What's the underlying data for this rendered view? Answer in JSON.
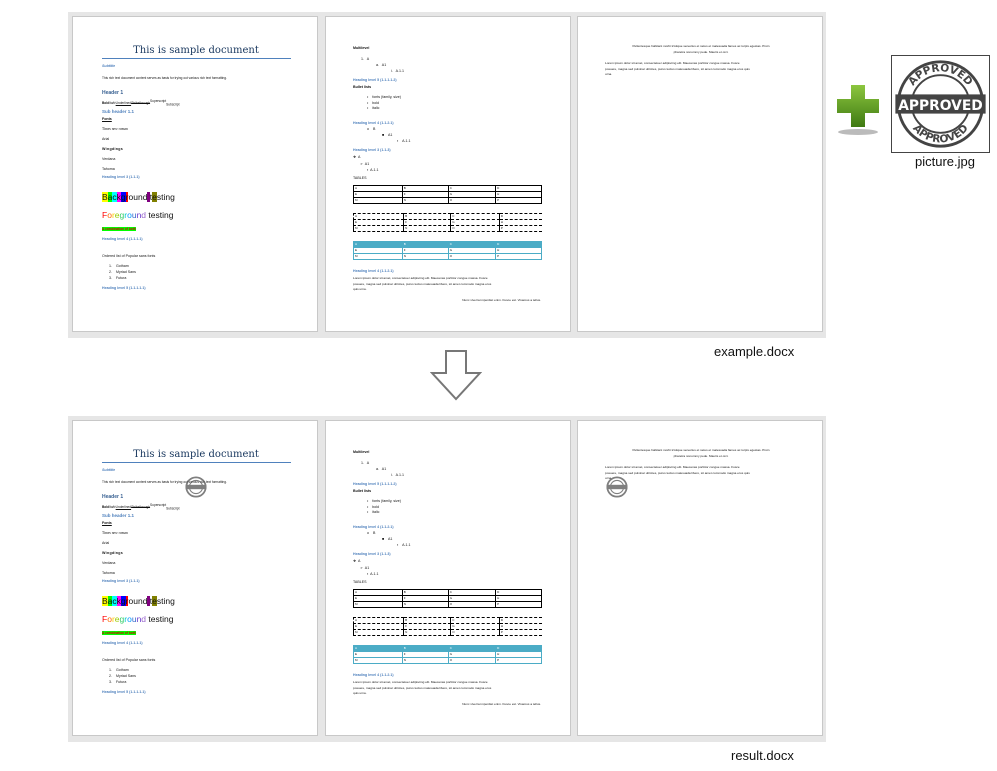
{
  "document": {
    "page1": {
      "title": "This is sample document",
      "subtitle": "Subtitle",
      "intro": "This rich text document content serves as basis for trying out various rich text formatting.",
      "header1": "Header 1",
      "formatting": [
        "Bold",
        "Italic",
        "Underlined",
        "Strikethrough",
        "Superscript",
        "Subscript"
      ],
      "subheader": "Sub header 1.1",
      "fonts_label": "Fonts",
      "fonts": [
        "Times new roman",
        "Arial",
        "Wingdings",
        "Verdana",
        "Tahoma"
      ],
      "heading3": "Heading level 3 (1.1.1)",
      "background_text": "Background testing",
      "foreground_text": "Foreground testing",
      "combination_text": "A combination of both",
      "heading4": "Heading level 4 (1.1.1.1)",
      "list_intro": "Ordered list of Popular sans fonts",
      "list_items": [
        "Gotham",
        "Myriad Sans",
        "Futura"
      ],
      "heading5": "Heading level 5 (1.1.1.1.1)"
    },
    "page2": {
      "multilevel": "Multilevel",
      "multilevel_items": [
        [
          "1.",
          "A"
        ],
        [
          "a.",
          "A1"
        ],
        [
          "i.",
          "A.1.1"
        ]
      ],
      "heading5": "Heading level 5 (1.1.1.1.2)",
      "bullet_label": "Bullet lists",
      "bullets": [
        "fonts (family, size)",
        "bold",
        "italic"
      ],
      "heading4": "Heading level 4 (1.1.2.1)",
      "nested1": [
        [
          "o",
          "B"
        ],
        [
          "■",
          "A1"
        ],
        [
          "▪",
          "A.1.1"
        ]
      ],
      "heading3": "Heading level 3 (1.1.3)",
      "nested2": [
        [
          "❖",
          "A"
        ],
        [
          "➢",
          "A1"
        ],
        [
          "▪",
          "A.1.1"
        ]
      ],
      "tables_label": "TABLES",
      "table_rows": [
        [
          "A",
          "B",
          "C",
          "D"
        ],
        [
          "E",
          "F",
          "G",
          "H"
        ],
        [
          "M",
          "N",
          "O",
          "P"
        ]
      ],
      "heading4b": "Heading level 4 (1.1.2.1)",
      "lorem": [
        "Lorem ipsum dolor sit amet, consectetuer adipiscing elit. Maecenas porttitor congue massa. Fusce",
        "posuere, magna sed pulvinar ultricies, purus lectus malesuada libero, sit amet commodo magna eros",
        "quis urna."
      ],
      "closing": "Nunc viverra imperdiet enim. Fusce est. Vivamus a tellus."
    },
    "page3": {
      "centered": [
        "Pellentesque habitant morbi tristique senectus et netus et malesuada fames ac turpis egestas. Proin",
        "pharetra nonummy pede. Mauris et orci."
      ],
      "lorem": [
        "Lorem ipsum dolor sit amet, consectetuer adipiscing elit. Maecenas porttitor congue massa. Fusce",
        "posuere, magna sed pulvinar ultricies, purus lectus malesuada libero, sit amet commodo magna eros quis",
        "urna."
      ]
    }
  },
  "labels": {
    "source": "example.docx",
    "result": "result.docx",
    "picture": "picture.jpg"
  },
  "stamp_text": "APPROVED",
  "icons": {
    "plus": "plus-icon",
    "arrow": "arrow-down-icon"
  },
  "colors": {
    "heading": "#4f81bd",
    "title": "#17365d",
    "table_accent": "#4bacc6",
    "plus": "#5e9a1c"
  }
}
